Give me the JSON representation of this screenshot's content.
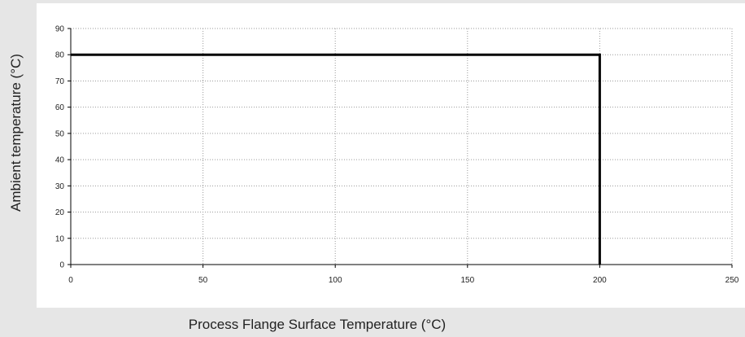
{
  "chart_data": {
    "type": "line",
    "xlabel": "Process Flange Surface Temperature (°C)",
    "ylabel": "Ambient temperature (°C)",
    "xlim": [
      0,
      250
    ],
    "ylim": [
      0,
      90
    ],
    "x_ticks": [
      0,
      50,
      100,
      150,
      200,
      250
    ],
    "y_ticks": [
      0,
      10,
      20,
      30,
      40,
      50,
      60,
      70,
      80,
      90
    ],
    "grid": "dotted",
    "series": [
      {
        "x": [
          0,
          200,
          200
        ],
        "y": [
          80,
          80,
          0
        ],
        "color": "#000000"
      }
    ]
  }
}
